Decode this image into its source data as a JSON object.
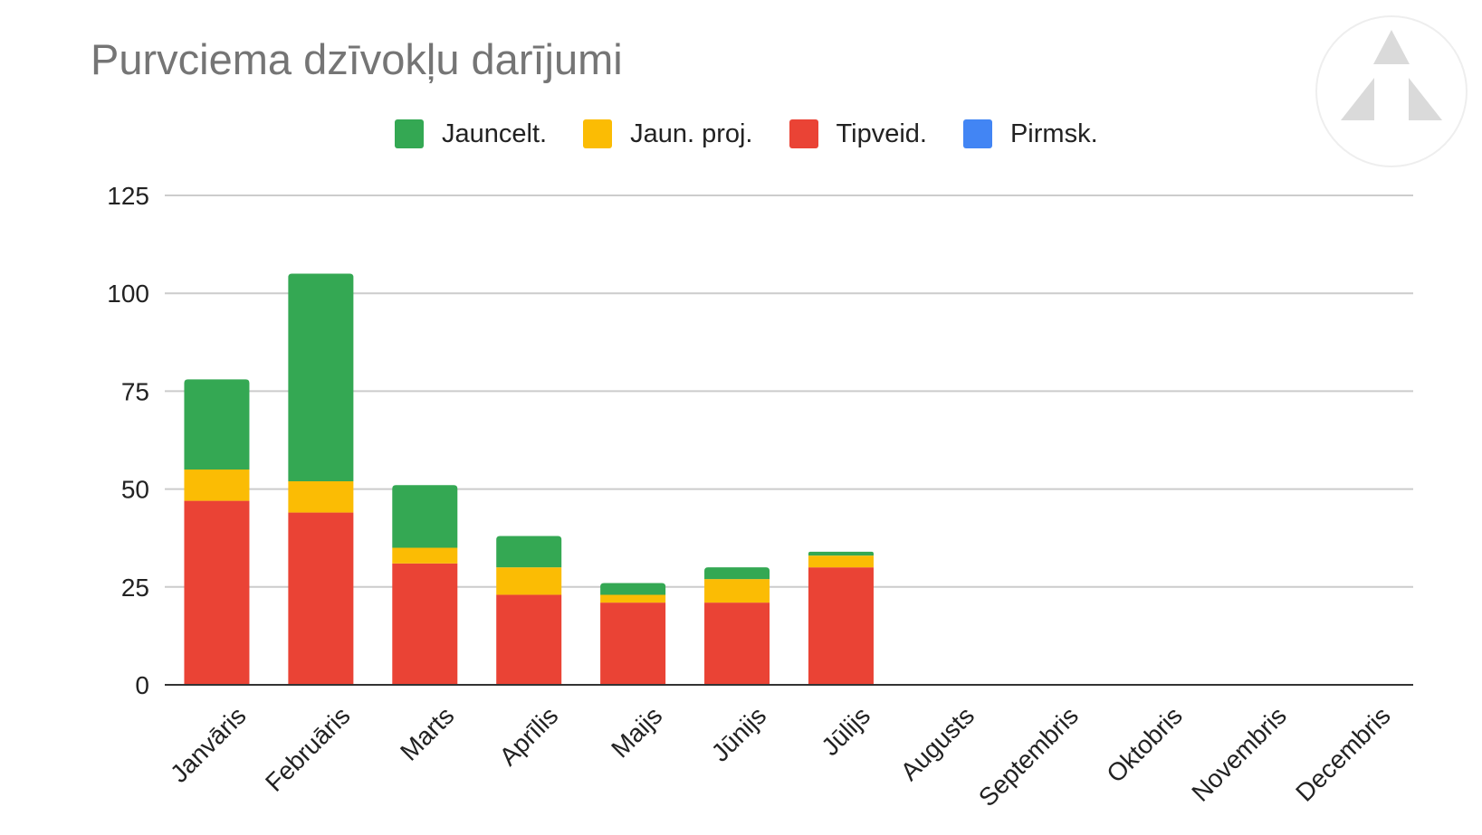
{
  "chart_data": {
    "type": "bar",
    "stacked": true,
    "title": "Purvciema dzīvokļu darījumi",
    "categories": [
      "Janvāris",
      "Februāris",
      "Marts",
      "Aprīlis",
      "Maijs",
      "Jūnijs",
      "Jūlijs",
      "Augusts",
      "Septembris",
      "Oktobris",
      "Novembris",
      "Decembris"
    ],
    "series": [
      {
        "name": "Tipveid.",
        "color": "#ea4335",
        "values": [
          47,
          44,
          31,
          23,
          21,
          21,
          30,
          0,
          0,
          0,
          0,
          0
        ]
      },
      {
        "name": "Jaun. proj.",
        "color": "#fbbc04",
        "values": [
          8,
          8,
          4,
          7,
          2,
          6,
          3,
          0,
          0,
          0,
          0,
          0
        ]
      },
      {
        "name": "Jauncelt.",
        "color": "#34a853",
        "values": [
          23,
          53,
          16,
          8,
          3,
          3,
          1,
          0,
          0,
          0,
          0,
          0
        ]
      },
      {
        "name": "Pirmsk.",
        "color": "#4285f4",
        "values": [
          0,
          0,
          0,
          0,
          0,
          0,
          0,
          0,
          0,
          0,
          0,
          0
        ]
      }
    ],
    "legend_order": [
      "Jauncelt.",
      "Jaun. proj.",
      "Tipveid.",
      "Pirmsk."
    ],
    "legend_position": "top",
    "ylim": [
      0,
      125
    ],
    "yticks": [
      "0",
      "25",
      "50",
      "75",
      "100",
      "125"
    ],
    "xlabel": "",
    "ylabel": "",
    "grid": true
  },
  "logo_icon": "triangle-logo-icon"
}
